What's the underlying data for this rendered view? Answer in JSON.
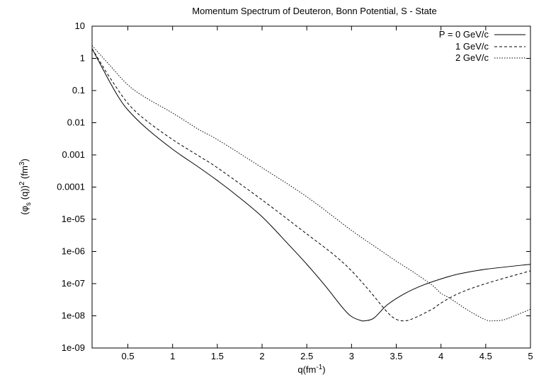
{
  "chart_data": {
    "type": "line",
    "title": "Momentum Spectrum of Deuteron, Bonn Potential, S - State",
    "xlabel": "q(fm",
    "xlabel_sup": "-1",
    "xlabel_end": ")",
    "ylabel": {
      "open": "(φ",
      "sub": "s",
      "mid": " (q))",
      "sup": "2",
      "mid2": " (fm",
      "sup2": "3",
      "close": ")"
    },
    "xlim": [
      0.1,
      5
    ],
    "ylim": [
      1e-09,
      10
    ],
    "y_scale": "log",
    "x_ticks": [
      "0.5",
      "1",
      "1.5",
      "2",
      "2.5",
      "3",
      "3.5",
      "4",
      "4.5",
      "5"
    ],
    "x_tick_values": [
      0.5,
      1,
      1.5,
      2,
      2.5,
      3,
      3.5,
      4,
      4.5,
      5
    ],
    "y_ticks": [
      "1e-09",
      "1e-08",
      "1e-07",
      "1e-06",
      "1e-05",
      "0.0001",
      "0.001",
      "0.01",
      "0.1",
      "1",
      "10"
    ],
    "y_tick_values": [
      1e-09,
      1e-08,
      1e-07,
      1e-06,
      1e-05,
      0.0001,
      0.001,
      0.01,
      0.1,
      1,
      10
    ],
    "legend_position": "top-right",
    "grid": false,
    "series": [
      {
        "name": "P = 0 GeV/c",
        "style": "solid",
        "x": [
          0.1,
          0.2,
          0.3,
          0.4,
          0.5,
          0.7,
          1.0,
          1.3,
          1.5,
          1.7,
          2.0,
          2.3,
          2.5,
          2.7,
          2.9,
          3.0,
          3.1,
          3.15,
          3.25,
          3.4,
          3.6,
          3.8,
          4.0,
          4.2,
          4.5,
          5.0
        ],
        "y": [
          2.0,
          0.6,
          0.18,
          0.06,
          0.025,
          0.007,
          0.0015,
          0.0004,
          0.00016,
          6e-05,
          1.2e-05,
          1.6e-06,
          4e-07,
          9e-08,
          1.8e-08,
          9.5e-09,
          7.2e-09,
          7e-09,
          8.5e-09,
          2.2e-08,
          5e-08,
          9e-08,
          1.4e-07,
          2e-07,
          2.8e-07,
          4e-07
        ]
      },
      {
        "name": "1 GeV/c",
        "style": "dashed",
        "x": [
          0.1,
          0.2,
          0.3,
          0.5,
          0.7,
          1.0,
          1.3,
          1.5,
          2.0,
          2.5,
          2.8,
          3.0,
          3.2,
          3.4,
          3.5,
          3.6,
          3.7,
          3.9,
          4.0,
          4.2,
          4.5,
          5.0
        ],
        "y": [
          2.0,
          0.7,
          0.25,
          0.04,
          0.012,
          0.003,
          0.0009,
          0.0004,
          4e-05,
          3.5e-06,
          8e-07,
          2.5e-07,
          6e-08,
          1.3e-08,
          7.8e-09,
          7e-09,
          8.5e-09,
          1.6e-08,
          2.5e-08,
          5e-08,
          1e-07,
          2.5e-07
        ]
      },
      {
        "name": "2 GeV/c",
        "style": "dotted",
        "x": [
          0.1,
          0.3,
          0.5,
          0.7,
          1.0,
          1.3,
          1.5,
          2.0,
          2.5,
          3.0,
          3.3,
          3.5,
          3.7,
          3.9,
          4.0,
          4.1,
          4.3,
          4.5,
          4.6,
          4.7,
          4.8,
          5.0
        ],
        "y": [
          2.5,
          0.6,
          0.15,
          0.06,
          0.02,
          0.006,
          0.003,
          0.0004,
          5e-05,
          4.5e-06,
          1.2e-06,
          5e-07,
          2.2e-07,
          9e-08,
          5e-08,
          3.5e-08,
          1.5e-08,
          7.5e-09,
          7e-09,
          7.5e-09,
          9.5e-09,
          1.6e-08
        ]
      }
    ]
  }
}
